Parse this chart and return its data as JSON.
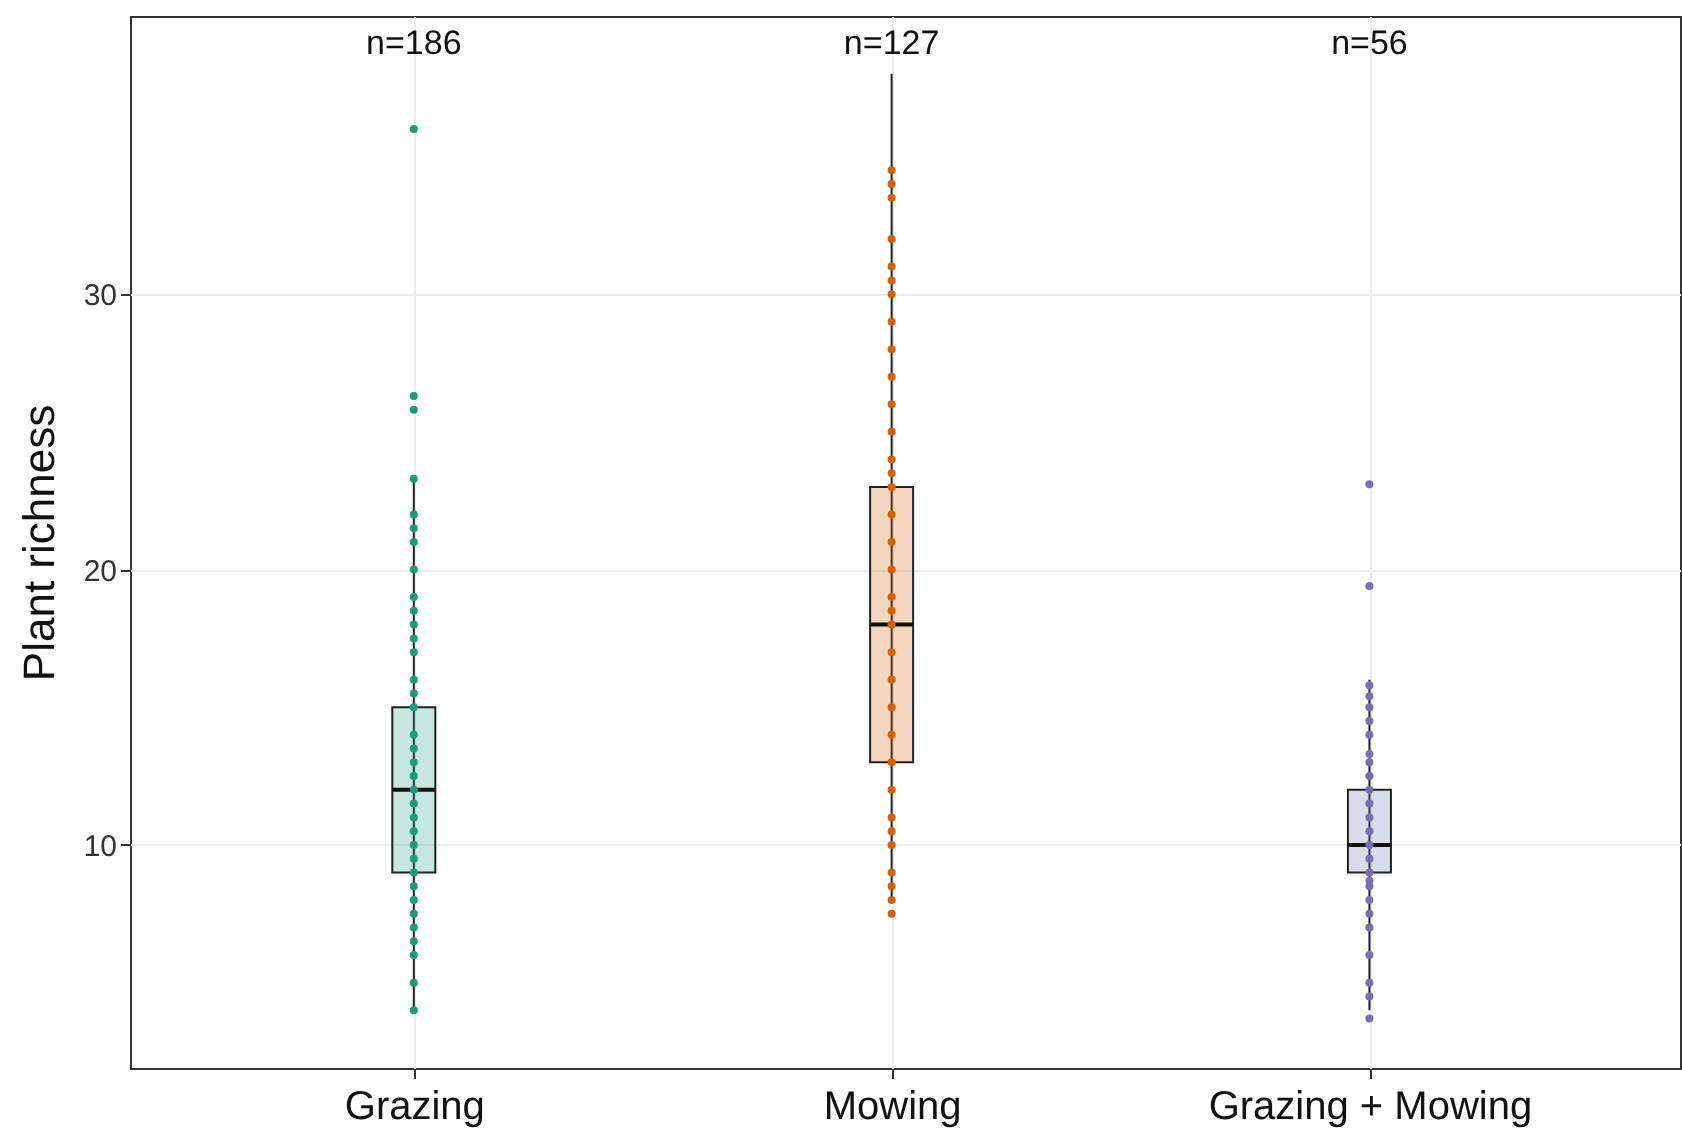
{
  "chart_data": {
    "type": "box",
    "ylabel": "Plant richness",
    "categories": [
      "Grazing",
      "Mowing",
      "Grazing + Mowing"
    ],
    "colors": [
      "#1b9e77",
      "#d95f02",
      "#7570b3"
    ],
    "boxes": [
      {
        "low": 4,
        "q1": 9,
        "median": 12,
        "q3": 15,
        "high": 23.3
      },
      {
        "low": 8,
        "q1": 13,
        "median": 18,
        "q3": 23,
        "high": 38
      },
      {
        "low": 4,
        "q1": 9,
        "median": 10,
        "q3": 12,
        "high": 16
      }
    ],
    "series": [
      {
        "type": "scatter",
        "color": "#1b9e77",
        "x": [
          "Grazing",
          "Grazing",
          "Grazing",
          "Grazing",
          "Grazing",
          "Grazing",
          "Grazing",
          "Grazing",
          "Grazing",
          "Grazing",
          "Grazing",
          "Grazing",
          "Grazing",
          "Grazing",
          "Grazing",
          "Grazing",
          "Grazing",
          "Grazing",
          "Grazing",
          "Grazing",
          "Grazing",
          "Grazing",
          "Grazing",
          "Grazing",
          "Grazing",
          "Grazing",
          "Grazing",
          "Grazing",
          "Grazing",
          "Grazing",
          "Grazing",
          "Grazing",
          "Grazing",
          "Grazing",
          "Grazing",
          "Grazing"
        ],
        "values": [
          36,
          null,
          26.3,
          25.8,
          23.3,
          22,
          21.5,
          21,
          20,
          19,
          18.5,
          18,
          17.5,
          17,
          16,
          15.5,
          15,
          14,
          13.5,
          13,
          12.5,
          12,
          11.5,
          11,
          10.5,
          10,
          9.5,
          9,
          8.5,
          8,
          7.5,
          7,
          6.5,
          6,
          5,
          4
        ]
      },
      {
        "type": "scatter",
        "color": "#d95f02",
        "x": [
          "Mowing",
          "Mowing",
          "Mowing",
          "Mowing",
          "Mowing",
          "Mowing",
          "Mowing",
          "Mowing",
          "Mowing",
          "Mowing",
          "Mowing",
          "Mowing",
          "Mowing",
          "Mowing",
          "Mowing",
          "Mowing",
          "Mowing",
          "Mowing",
          "Mowing",
          "Mowing",
          "Mowing",
          "Mowing",
          "Mowing",
          "Mowing",
          "Mowing",
          "Mowing",
          "Mowing",
          "Mowing",
          "Mowing",
          "Mowing",
          "Mowing",
          "Mowing",
          "Mowing",
          "Mowing"
        ],
        "values": [
          34,
          33.5,
          34.5,
          32,
          31,
          30.5,
          30,
          29,
          28,
          27,
          26,
          25,
          24,
          23.5,
          23,
          22,
          21,
          20,
          19,
          18.5,
          18,
          17,
          16,
          15,
          14,
          13,
          12,
          11,
          10.5,
          10,
          9,
          8.5,
          8,
          7.5
        ]
      },
      {
        "type": "scatter",
        "color": "#7570b3",
        "x": [
          "Grazing + Mowing",
          "Grazing + Mowing",
          "Grazing + Mowing",
          "Grazing + Mowing",
          "Grazing + Mowing",
          "Grazing + Mowing",
          "Grazing + Mowing",
          "Grazing + Mowing",
          "Grazing + Mowing",
          "Grazing + Mowing",
          "Grazing + Mowing",
          "Grazing + Mowing",
          "Grazing + Mowing",
          "Grazing + Mowing",
          "Grazing + Mowing",
          "Grazing + Mowing",
          "Grazing + Mowing",
          "Grazing + Mowing",
          "Grazing + Mowing",
          "Grazing + Mowing",
          "Grazing + Mowing",
          "Grazing + Mowing",
          "Grazing + Mowing",
          "Grazing + Mowing",
          "Grazing + Mowing",
          "Grazing + Mowing"
        ],
        "values": [
          23.1,
          19.4,
          15.8,
          15.4,
          15,
          14.5,
          14,
          13.3,
          13,
          12.5,
          12,
          11.5,
          11,
          10.5,
          10,
          9.5,
          9,
          8.7,
          8.5,
          8,
          7.5,
          7,
          6,
          5,
          4.5,
          3.7
        ]
      }
    ],
    "ylim": [
      1.9,
      40.1
    ],
    "yticks": [
      10,
      20,
      30
    ],
    "grid": true,
    "annotations": [
      "n=186",
      "n=127",
      "n=56"
    ]
  }
}
